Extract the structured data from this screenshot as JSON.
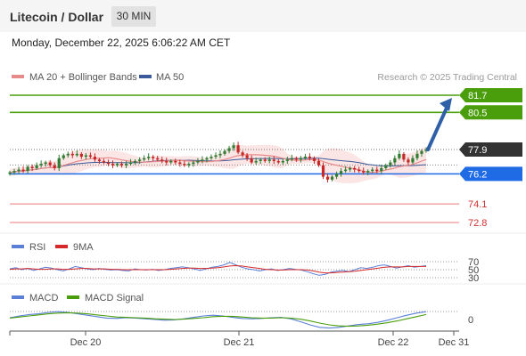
{
  "header": {
    "title": "Litecoin / Dollar",
    "timeframe": "30 MIN"
  },
  "datetime": "Monday, December 22, 2025 6:06:22 AM CET",
  "legend": {
    "ma20": "MA 20 + Bollinger Bands",
    "ma50": "MA 50",
    "credit": "Research © 2025 Trading Central"
  },
  "colors": {
    "resistance": "#4a9e0c",
    "support": "#1f6be6",
    "weak": "#e87a7a",
    "price": "#333333",
    "ma20": "#e88a8a",
    "ma50": "#3a5a9a",
    "bull": "#2e7d32",
    "bear": "#c62828",
    "rsi": "#5b7fd6",
    "rsi_ma": "#d62828",
    "macd": "#5b7fd6",
    "macd_signal": "#4a9e0c",
    "arrow": "#2f5fa6"
  },
  "chart_data": [
    {
      "type": "candlestick",
      "title": "Litecoin / Dollar",
      "x_ticks": [
        "Dec 20",
        "Dec 21",
        "Dec 22",
        "Dec 31"
      ],
      "levels": [
        {
          "label": "81.7",
          "value": 81.7,
          "kind": "resistance"
        },
        {
          "label": "80.5",
          "value": 80.5,
          "kind": "resistance"
        },
        {
          "label": "77.9",
          "value": 77.9,
          "kind": "last"
        },
        {
          "label": "76.2",
          "value": 76.2,
          "kind": "support"
        },
        {
          "label": "74.1",
          "value": 74.1,
          "kind": "weak"
        },
        {
          "label": "72.8",
          "value": 72.8,
          "kind": "weak"
        }
      ],
      "ylim": [
        72.0,
        82.5
      ],
      "forecast": {
        "from": 77.9,
        "to": 81.7
      },
      "legend": [
        "MA 20 + Bollinger Bands",
        "MA 50"
      ],
      "close": [
        76.3,
        76.4,
        76.5,
        76.4,
        76.7,
        76.6,
        76.8,
        76.9,
        77.0,
        76.8,
        76.6,
        77.3,
        77.5,
        77.6,
        77.5,
        77.6,
        77.4,
        77.5,
        77.4,
        77.2,
        77.1,
        77.0,
        76.9,
        76.8,
        76.9,
        76.8,
        76.9,
        77.0,
        77.1,
        77.2,
        77.3,
        77.4,
        77.3,
        77.2,
        77.1,
        77.0,
        77.1,
        77.0,
        76.9,
        76.8,
        76.9,
        77.0,
        77.1,
        77.2,
        77.3,
        77.4,
        77.5,
        77.6,
        77.8,
        78.0,
        78.2,
        77.7,
        77.5,
        77.3,
        77.0,
        77.1,
        77.2,
        77.1,
        77.2,
        77.1,
        77.0,
        77.1,
        77.2,
        77.3,
        77.2,
        77.3,
        77.4,
        77.3,
        77.1,
        76.8,
        76.0,
        75.8,
        76.0,
        76.2,
        76.4,
        76.5,
        76.6,
        76.5,
        76.4,
        76.3,
        76.4,
        76.5,
        76.4,
        76.6,
        76.8,
        77.0,
        77.3,
        77.6,
        77.2,
        77.0,
        77.3,
        77.6,
        77.8,
        77.9
      ]
    },
    {
      "type": "line",
      "title": "RSI",
      "legend": [
        "RSI",
        "9MA"
      ],
      "y_ticks": [
        70,
        50,
        30
      ],
      "ylim": [
        20,
        80
      ],
      "series": [
        {
          "name": "RSI",
          "values": [
            52,
            55,
            50,
            53,
            48,
            52,
            56,
            54,
            50,
            47,
            52,
            58,
            55,
            52,
            50,
            53,
            51,
            49,
            50,
            48,
            47,
            52,
            50,
            49,
            51,
            48,
            50,
            53,
            55,
            57,
            55,
            52,
            48,
            52,
            56,
            58,
            62,
            68,
            62,
            56,
            52,
            50,
            47,
            50,
            52,
            48,
            50,
            53,
            51,
            49,
            45,
            40,
            36,
            38,
            44,
            46,
            48,
            45,
            50,
            55,
            53,
            56,
            60,
            62,
            58,
            54,
            57,
            60,
            56,
            58,
            60
          ]
        },
        {
          "name": "9MA",
          "values": [
            51,
            52,
            52,
            53,
            52,
            51,
            51,
            52,
            52,
            51,
            51,
            52,
            53,
            53,
            52,
            52,
            52,
            51,
            51,
            50,
            50,
            50,
            50,
            50,
            50,
            50,
            50,
            51,
            52,
            53,
            54,
            54,
            53,
            53,
            54,
            55,
            57,
            59,
            60,
            59,
            57,
            55,
            53,
            51,
            50,
            49,
            49,
            50,
            50,
            50,
            49,
            47,
            44,
            42,
            42,
            43,
            44,
            45,
            46,
            48,
            50,
            52,
            54,
            56,
            57,
            57,
            57,
            58,
            58,
            58,
            58
          ]
        }
      ]
    },
    {
      "type": "line",
      "title": "MACD",
      "legend": [
        "MACD",
        "MACD Signal"
      ],
      "y_ticks": [
        0
      ],
      "ylim": [
        -0.4,
        0.4
      ],
      "series": [
        {
          "name": "MACD",
          "values": [
            0.05,
            0.1,
            0.14,
            0.16,
            0.2,
            0.22,
            0.2,
            0.16,
            0.12,
            0.08,
            0.04,
            0.03,
            0.05,
            0.04,
            0.02,
            0.0,
            -0.02,
            -0.01,
            0.02,
            0.06,
            0.1,
            0.12,
            0.1,
            0.06,
            0.03,
            0.02,
            0.03,
            0.05,
            0.06,
            0.02,
            -0.06,
            -0.15,
            -0.22,
            -0.24,
            -0.22,
            -0.18,
            -0.14,
            -0.12,
            -0.08,
            -0.02,
            0.05,
            0.12,
            0.18,
            0.22
          ]
        },
        {
          "name": "MACD Signal",
          "values": [
            0.04,
            0.07,
            0.1,
            0.13,
            0.16,
            0.18,
            0.19,
            0.18,
            0.16,
            0.13,
            0.1,
            0.07,
            0.06,
            0.05,
            0.04,
            0.02,
            0.01,
            0.0,
            0.01,
            0.03,
            0.05,
            0.08,
            0.09,
            0.09,
            0.07,
            0.05,
            0.04,
            0.04,
            0.05,
            0.04,
            0.01,
            -0.04,
            -0.1,
            -0.15,
            -0.18,
            -0.19,
            -0.18,
            -0.16,
            -0.13,
            -0.09,
            -0.04,
            0.02,
            0.08,
            0.14
          ]
        }
      ]
    }
  ]
}
